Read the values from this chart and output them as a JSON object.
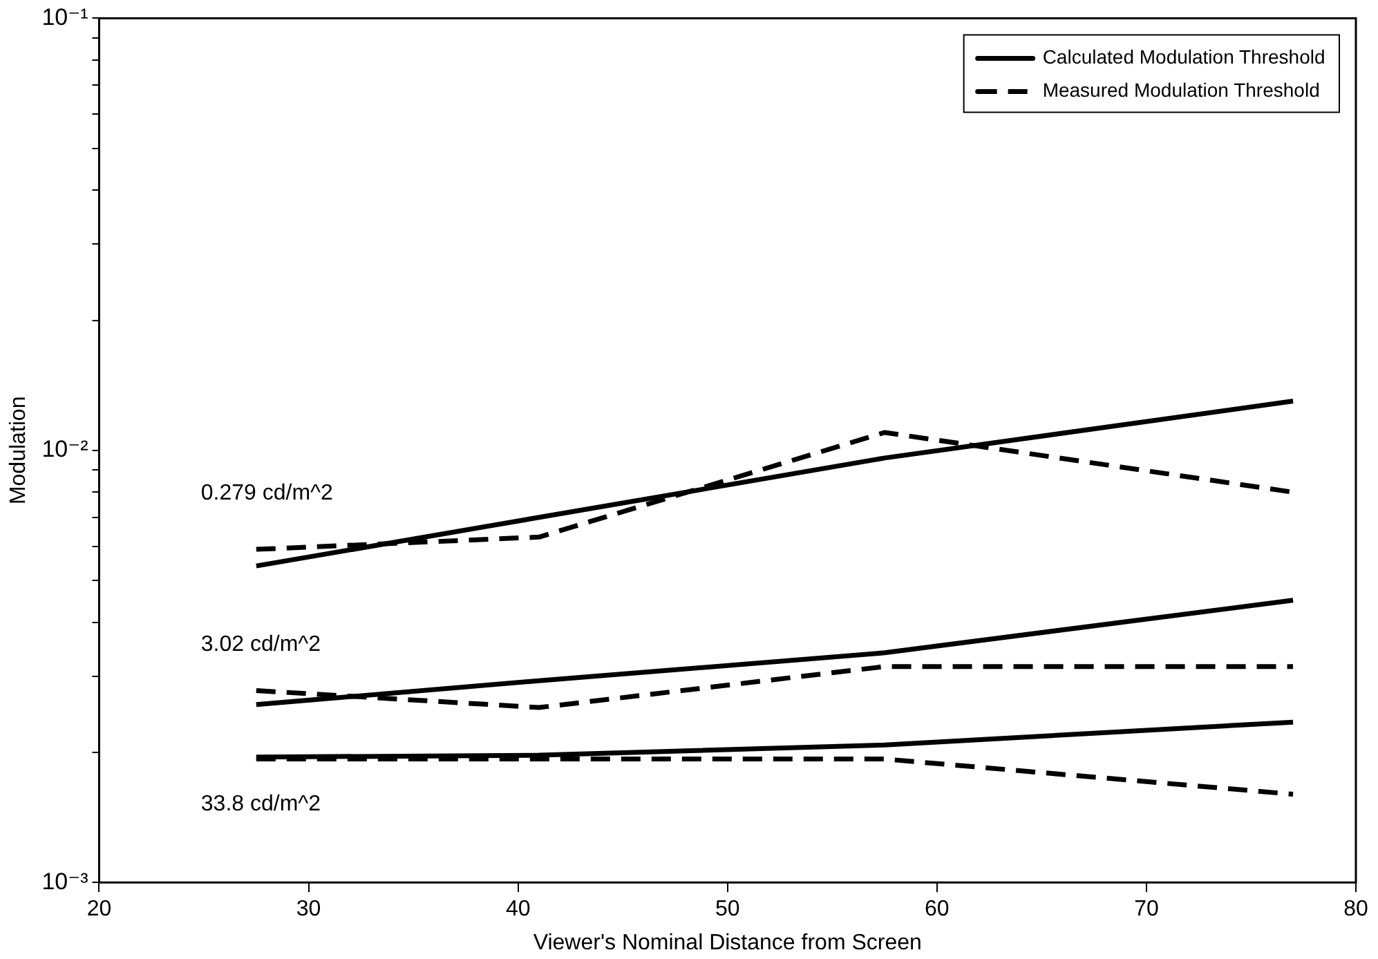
{
  "chart_data": {
    "type": "line",
    "xlabel": "Viewer's Nominal Distance from Screen",
    "ylabel": "Modulation",
    "xlim": [
      20,
      80
    ],
    "xticks": [
      20,
      30,
      40,
      50,
      60,
      70,
      80
    ],
    "ylim": [
      0.001,
      0.1
    ],
    "yticks": [
      {
        "value": 0.001,
        "label": "10⁻³"
      },
      {
        "value": 0.002,
        "label": null
      },
      {
        "value": 0.003,
        "label": null
      },
      {
        "value": 0.004,
        "label": null
      },
      {
        "value": 0.005,
        "label": null
      },
      {
        "value": 0.006,
        "label": null
      },
      {
        "value": 0.007,
        "label": null
      },
      {
        "value": 0.008,
        "label": null
      },
      {
        "value": 0.009,
        "label": null
      },
      {
        "value": 0.01,
        "label": "10⁻²"
      },
      {
        "value": 0.02,
        "label": null
      },
      {
        "value": 0.03,
        "label": null
      },
      {
        "value": 0.04,
        "label": null
      },
      {
        "value": 0.05,
        "label": null
      },
      {
        "value": 0.06,
        "label": null
      },
      {
        "value": 0.07,
        "label": null
      },
      {
        "value": 0.08,
        "label": null
      },
      {
        "value": 0.09,
        "label": null
      },
      {
        "value": 0.1,
        "label": "10⁻¹"
      }
    ],
    "log": "y",
    "grid": false,
    "legend": "top right",
    "marker": "none",
    "series": [
      {
        "name": "Calculated Modulation Threshold",
        "color": "#000000",
        "line_style": "solid",
        "x": [
          27.5,
          57.5,
          77
        ],
        "values": [
          0.0054,
          0.0096,
          0.013
        ]
      },
      {
        "name": "Measured Modulation Threshold",
        "color": "#000000",
        "line_style": "dashed",
        "x": [
          27.5,
          41,
          57.5,
          77
        ],
        "values": [
          0.0059,
          0.0063,
          0.011,
          0.008
        ]
      },
      {
        "color": "#000000",
        "line_style": "solid",
        "x": [
          27.5,
          41,
          57.5,
          77
        ],
        "values": [
          0.00258,
          0.00293,
          0.0034,
          0.0045
        ]
      },
      {
        "color": "#000000",
        "line_style": "dashed",
        "x": [
          27.5,
          41,
          57.5,
          77
        ],
        "values": [
          0.00278,
          0.00254,
          0.00316,
          0.00316
        ]
      },
      {
        "color": "#000000",
        "line_style": "solid",
        "x": [
          27.5,
          41,
          57.5,
          77
        ],
        "values": [
          0.00195,
          0.00197,
          0.00208,
          0.00235
        ]
      },
      {
        "color": "#000000",
        "line_style": "dashed",
        "x": [
          27.5,
          57.5,
          77
        ],
        "values": [
          0.00193,
          0.00193,
          0.0016
        ]
      }
    ],
    "annotations": [
      "0.279 cd/m^2",
      "3.02 cd/m^2",
      "33.8 cd/m^2"
    ]
  }
}
